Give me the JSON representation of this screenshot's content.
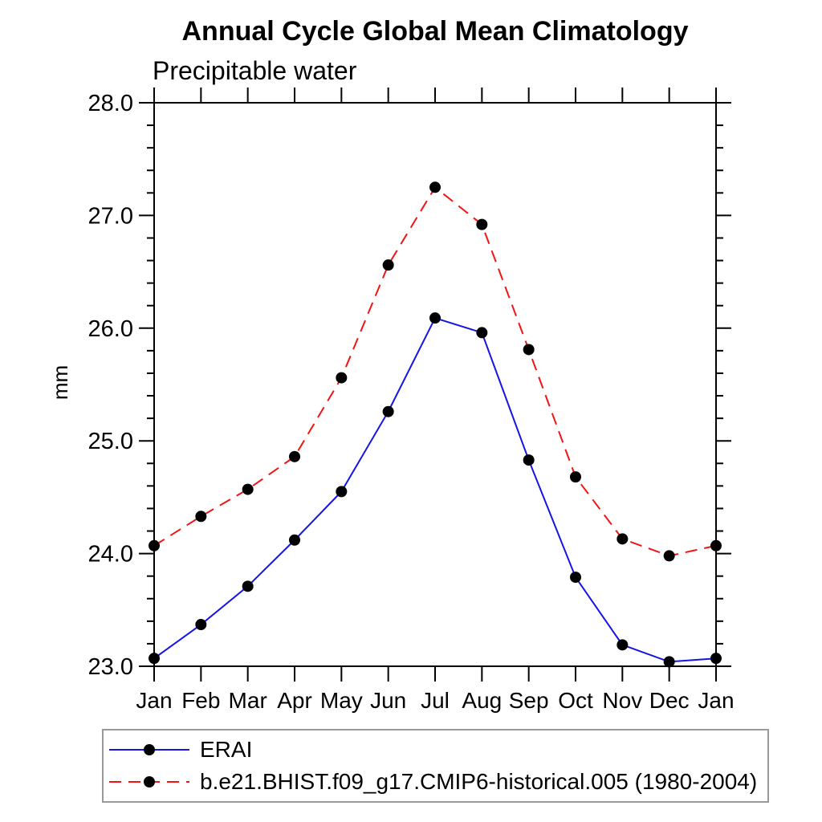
{
  "title": "Annual Cycle Global Mean Climatology",
  "subtitle": "Precipitable water",
  "ylabel": "mm",
  "chart_data": {
    "type": "line",
    "categories": [
      "Jan",
      "Feb",
      "Mar",
      "Apr",
      "May",
      "Jun",
      "Jul",
      "Aug",
      "Sep",
      "Oct",
      "Nov",
      "Dec",
      "Jan"
    ],
    "xlabel": "",
    "ylabel": "mm",
    "ylim": [
      23.0,
      28.0
    ],
    "ytick_labels": [
      "23.0",
      "24.0",
      "25.0",
      "26.0",
      "27.0",
      "28.0"
    ],
    "ytick_major": [
      23.0,
      24.0,
      25.0,
      26.0,
      27.0,
      28.0
    ],
    "ytick_minor_step": 0.2,
    "grid": false,
    "legend_position": "bottom",
    "axis_color": "#000000",
    "marker_color": "#000000",
    "series": [
      {
        "name": "ERAI",
        "color": "#1414e6",
        "style": "solid",
        "marker": "circle",
        "values": [
          23.07,
          23.37,
          23.71,
          24.12,
          24.55,
          25.26,
          26.09,
          25.96,
          24.83,
          23.79,
          23.19,
          23.04,
          23.07
        ]
      },
      {
        "name": "b.e21.BHIST.f09_g17.CMIP6-historical.005 (1980-2004)",
        "color": "#f01414",
        "style": "dashed",
        "marker": "circle",
        "values": [
          24.07,
          24.33,
          24.57,
          24.86,
          25.56,
          26.56,
          27.25,
          26.92,
          25.81,
          24.68,
          24.13,
          23.98,
          24.07
        ]
      }
    ]
  }
}
